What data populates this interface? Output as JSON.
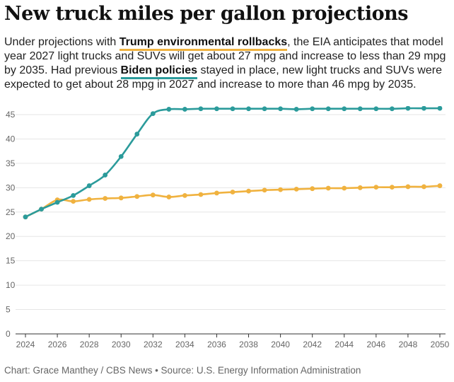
{
  "title": "New truck miles per gallon projections",
  "subtitle": {
    "part1": "Under projections with ",
    "trump_label": "Trump environmental rollbacks",
    "part2": ", the EIA anticipates that model year 2027 light trucks and SUVs will get about 27 mpg and increase to less than 29 mpg by 2035. Had previous ",
    "biden_label": "Biden policies",
    "part3": " stayed in place, new light trucks and SUVs were expected to get about 28 mpg in 2027 and increase to more than 46 mpg by 2035."
  },
  "footer": "Chart: Grace Manthey / CBS News • Source: U.S. Energy Information Administration",
  "colors": {
    "trump": "#f0b23f",
    "biden": "#2b9b9b",
    "grid": "#e6e6e6",
    "axis": "#333333"
  },
  "chart_data": {
    "type": "line",
    "title": "New truck miles per gallon projections",
    "xlabel": "",
    "ylabel": "",
    "xlim": [
      2024,
      2050
    ],
    "ylim": [
      0,
      45
    ],
    "x_ticks": [
      2024,
      2026,
      2028,
      2030,
      2032,
      2034,
      2036,
      2038,
      2040,
      2042,
      2044,
      2046,
      2048,
      2050
    ],
    "y_ticks": [
      0,
      5,
      10,
      15,
      20,
      25,
      30,
      35,
      40,
      45
    ],
    "grid": true,
    "x": [
      2024,
      2025,
      2026,
      2027,
      2028,
      2029,
      2030,
      2031,
      2032,
      2033,
      2034,
      2035,
      2036,
      2037,
      2038,
      2039,
      2040,
      2041,
      2042,
      2043,
      2044,
      2045,
      2046,
      2047,
      2048,
      2049,
      2050
    ],
    "series": [
      {
        "name": "Trump environmental rollbacks",
        "values": [
          24.0,
          25.6,
          27.5,
          27.2,
          27.6,
          27.8,
          27.9,
          28.2,
          28.5,
          28.1,
          28.4,
          28.6,
          28.9,
          29.1,
          29.3,
          29.5,
          29.6,
          29.7,
          29.8,
          29.9,
          29.9,
          30.0,
          30.1,
          30.1,
          30.2,
          30.2,
          30.4
        ]
      },
      {
        "name": "Biden policies",
        "values": [
          24.0,
          25.6,
          27.0,
          28.4,
          30.4,
          32.6,
          36.4,
          41.0,
          45.2,
          46.1,
          46.1,
          46.2,
          46.2,
          46.2,
          46.2,
          46.2,
          46.2,
          46.1,
          46.2,
          46.2,
          46.2,
          46.2,
          46.2,
          46.2,
          46.3,
          46.3,
          46.3
        ]
      }
    ]
  }
}
